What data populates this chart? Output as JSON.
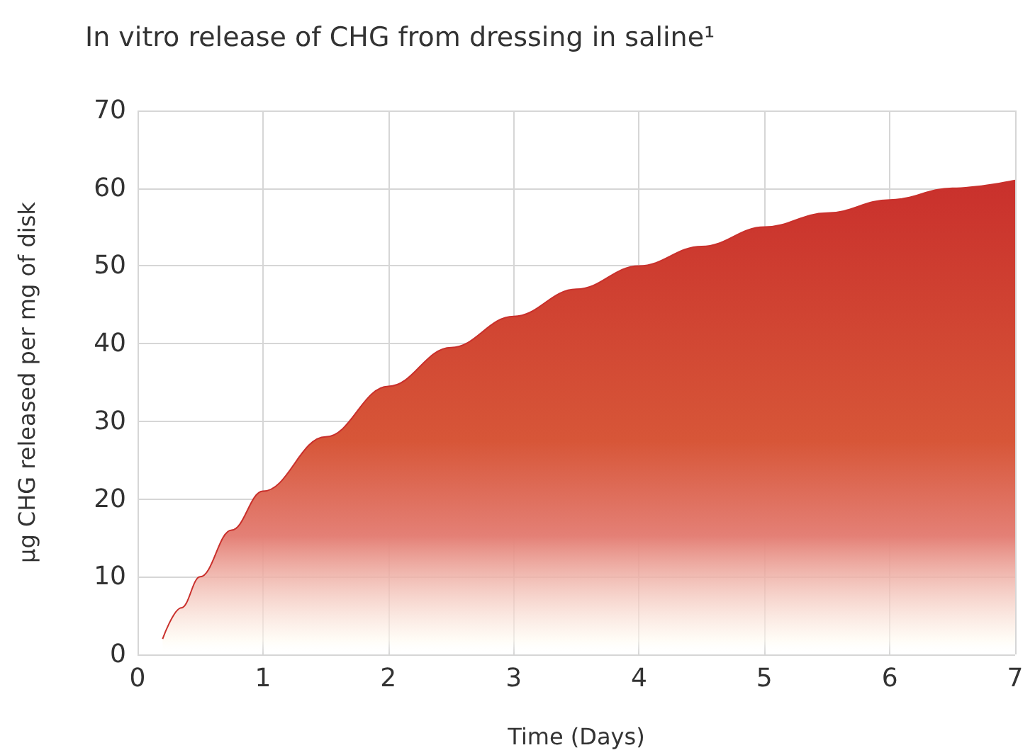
{
  "chart_data": {
    "type": "area",
    "title": "In vitro release of CHG from dressing in saline¹",
    "xlabel": "Time (Days)",
    "ylabel": "µg CHG released per mg of disk",
    "x": [
      0.2,
      0.35,
      0.5,
      0.75,
      1,
      1.5,
      2,
      2.5,
      3,
      3.5,
      4,
      4.5,
      5,
      5.5,
      6,
      6.5,
      7
    ],
    "series": [
      {
        "color": "#c9302c",
        "values": [
          2,
          6,
          10,
          16,
          21,
          28,
          34.5,
          39.5,
          43.5,
          47,
          50,
          52.5,
          55,
          56.8,
          58.5,
          60,
          61
        ]
      }
    ],
    "xlim": [
      0,
      7
    ],
    "xticks": [
      0,
      1,
      2,
      3,
      4,
      5,
      6,
      7
    ],
    "ylim": [
      0,
      70
    ],
    "yticks": [
      0,
      10,
      20,
      30,
      40,
      50,
      60,
      70
    ],
    "grid": true,
    "marker": "none"
  }
}
